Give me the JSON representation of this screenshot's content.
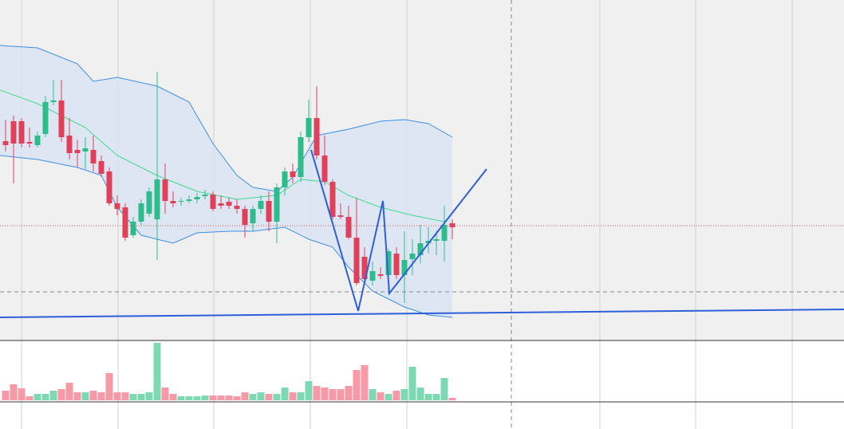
{
  "chart_data": {
    "type": "candlestick",
    "open": [
      253,
      278,
      278,
      252,
      248,
      262,
      302,
      304,
      260,
      242,
      240,
      242,
      228,
      215,
      175,
      170,
      135,
      152,
      162,
      155,
      205,
      178,
      177,
      178,
      180,
      184,
      186,
      175,
      177,
      172,
      168,
      150,
      168,
      178,
      152,
      195,
      215,
      208,
      258,
      282,
      235,
      202,
      160,
      158,
      132,
      108,
      78,
      86,
      85,
      112,
      85,
      105,
      110,
      125,
      128,
      128,
      150
    ],
    "high": [
      280,
      285,
      282,
      270,
      265,
      310,
      330,
      330,
      282,
      255,
      258,
      260,
      235,
      220,
      185,
      175,
      158,
      180,
      195,
      340,
      225,
      190,
      182,
      185,
      188,
      192,
      190,
      185,
      182,
      180,
      172,
      172,
      185,
      190,
      200,
      220,
      225,
      265,
      305,
      322,
      260,
      205,
      175,
      172,
      182,
      120,
      102,
      95,
      118,
      120,
      140,
      130,
      148,
      145,
      140,
      172,
      155
    ],
    "low": [
      240,
      200,
      245,
      245,
      245,
      258,
      298,
      252,
      230,
      220,
      218,
      215,
      208,
      172,
      160,
      128,
      132,
      148,
      158,
      104,
      162,
      170,
      172,
      175,
      175,
      180,
      165,
      168,
      168,
      162,
      132,
      140,
      162,
      140,
      125,
      185,
      200,
      202,
      252,
      230,
      198,
      155,
      155,
      130,
      72,
      75,
      72,
      80,
      62,
      80,
      50,
      85,
      100,
      112,
      110,
      102,
      130
    ],
    "close": [
      248,
      250,
      250,
      250,
      260,
      302,
      304,
      258,
      238,
      238,
      244,
      225,
      212,
      175,
      168,
      132,
      152,
      175,
      190,
      205,
      178,
      175,
      178,
      180,
      183,
      186,
      168,
      172,
      172,
      168,
      148,
      168,
      178,
      152,
      195,
      215,
      208,
      258,
      282,
      235,
      202,
      158,
      158,
      132,
      75,
      80,
      90,
      84,
      115,
      85,
      104,
      112,
      125,
      128,
      130,
      148,
      145
    ],
    "volume": [
      12,
      20,
      15,
      5,
      8,
      8,
      12,
      14,
      22,
      10,
      10,
      12,
      10,
      34,
      10,
      10,
      8,
      8,
      10,
      72,
      16,
      8,
      5,
      5,
      5,
      6,
      6,
      6,
      6,
      5,
      10,
      8,
      10,
      8,
      8,
      16,
      10,
      10,
      24,
      18,
      16,
      14,
      14,
      18,
      38,
      44,
      14,
      10,
      8,
      12,
      14,
      42,
      16,
      8,
      8,
      28,
      3
    ],
    "up_color": "#2fbc8c",
    "down_color": "#e0405a",
    "volume_up_color": "#7fd8b4",
    "volume_down_color": "#f59aa6",
    "ylim": [
      3,
      430
    ],
    "volume_ylim": [
      0,
      75
    ],
    "bands": [
      {
        "name": "upper",
        "color": "#3d8fe0",
        "x": [
          -0.7,
          4,
          9,
          11,
          14,
          19,
          23,
          26,
          29,
          31,
          34,
          36,
          39,
          43,
          47,
          50,
          53,
          56
        ],
        "values": [
          373,
          370,
          350,
          328,
          333,
          322,
          302,
          250,
          210,
          195,
          190,
          208,
          260,
          268,
          278,
          280,
          275,
          258
        ]
      },
      {
        "name": "middle",
        "color": "#3fdc8a",
        "x": [
          -0.7,
          4,
          10,
          14,
          19,
          24,
          29,
          34,
          37,
          40,
          43,
          47,
          51,
          55
        ],
        "values": [
          317,
          300,
          270,
          235,
          210,
          190,
          180,
          185,
          205,
          202,
          185,
          170,
          160,
          152
        ]
      },
      {
        "name": "lower",
        "color": "#3d8fe0",
        "x": [
          -0.7,
          4,
          9,
          12,
          14,
          17,
          21,
          24,
          28,
          31,
          35,
          38,
          41,
          43,
          46,
          48,
          50,
          53,
          56
        ],
        "values": [
          235,
          230,
          220,
          210,
          170,
          135,
          125,
          138,
          140,
          140,
          145,
          130,
          120,
          95,
          65,
          55,
          45,
          35,
          32
        ]
      }
    ],
    "band_fill": "#d8e4f2"
  }
}
